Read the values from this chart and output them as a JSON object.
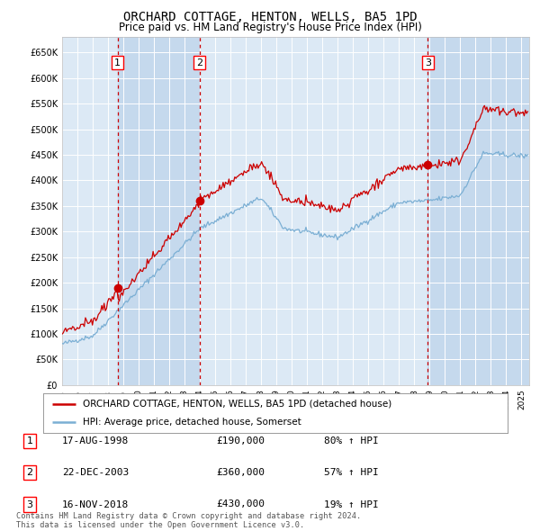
{
  "title": "ORCHARD COTTAGE, HENTON, WELLS, BA5 1PD",
  "subtitle": "Price paid vs. HM Land Registry's House Price Index (HPI)",
  "ylabel_ticks": [
    "£0",
    "£50K",
    "£100K",
    "£150K",
    "£200K",
    "£250K",
    "£300K",
    "£350K",
    "£400K",
    "£450K",
    "£500K",
    "£550K",
    "£600K",
    "£650K"
  ],
  "ytick_values": [
    0,
    50000,
    100000,
    150000,
    200000,
    250000,
    300000,
    350000,
    400000,
    450000,
    500000,
    550000,
    600000,
    650000
  ],
  "ylim": [
    0,
    680000
  ],
  "xlim_start": 1995.0,
  "xlim_end": 2025.5,
  "hpi_color": "#7bafd4",
  "price_color": "#cc0000",
  "chart_bg": "#dce9f5",
  "transactions": [
    {
      "num": 1,
      "date": "17-AUG-1998",
      "price": 190000,
      "pct": "80%",
      "year": 1998.63
    },
    {
      "num": 2,
      "date": "22-DEC-2003",
      "price": 360000,
      "pct": "57%",
      "year": 2003.97
    },
    {
      "num": 3,
      "date": "16-NOV-2018",
      "price": 430000,
      "pct": "19%",
      "year": 2018.88
    }
  ],
  "legend_entries": [
    "ORCHARD COTTAGE, HENTON, WELLS, BA5 1PD (detached house)",
    "HPI: Average price, detached house, Somerset"
  ],
  "footer_text": "Contains HM Land Registry data © Crown copyright and database right 2024.\nThis data is licensed under the Open Government Licence v3.0."
}
